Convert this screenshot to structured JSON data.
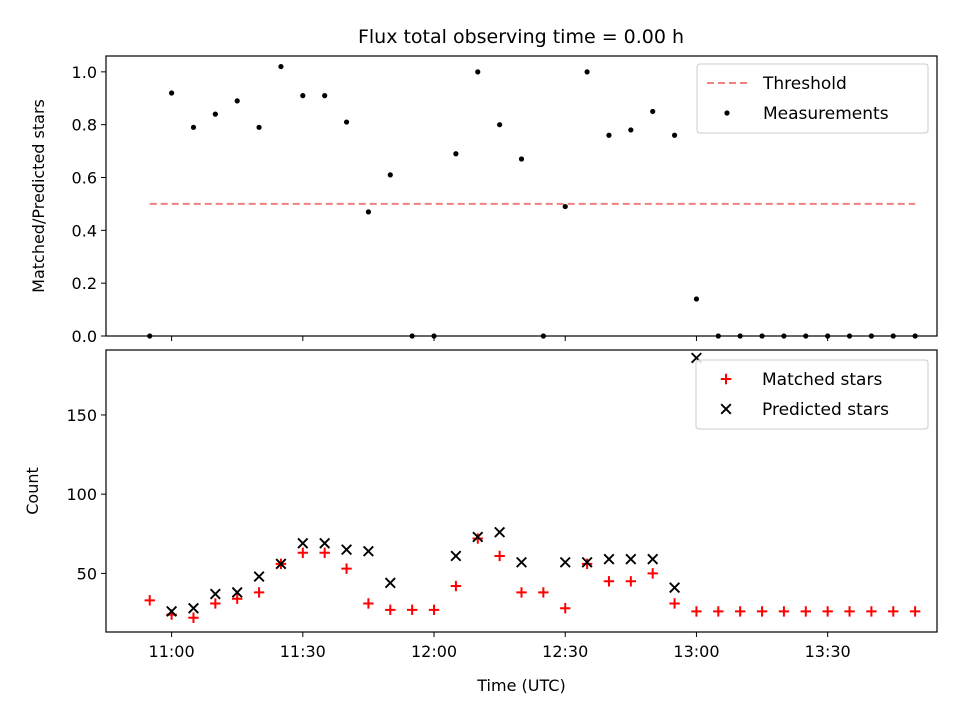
{
  "title": "Flux total observing time = 0.00 h",
  "chart_data": [
    {
      "type": "scatter",
      "title": "Flux total observing time = 0.00 h",
      "xlabel": "",
      "ylabel": "Matched/Predicted stars",
      "x_unit": "minutes since 00:00 UTC",
      "xlim": [
        645,
        835
      ],
      "ylim": [
        0,
        1.06
      ],
      "yticks": [
        0.0,
        0.2,
        0.4,
        0.6,
        0.8,
        1.0
      ],
      "ytick_labels": [
        "0.0",
        "0.2",
        "0.4",
        "0.6",
        "0.8",
        "1.0"
      ],
      "legend": {
        "placement": "top-right",
        "entries": [
          {
            "name": "Threshold",
            "marker": "dashed-line",
            "color": "#f08080"
          },
          {
            "name": "Measurements",
            "marker": "dot",
            "color": "#000000"
          }
        ]
      },
      "threshold": {
        "name": "Threshold",
        "value": 0.5,
        "x": [
          655,
          830
        ],
        "color": "#f08080"
      },
      "series": [
        {
          "name": "Measurements",
          "marker": "dot",
          "color": "#000000",
          "x": [
            655,
            660,
            665,
            670,
            675,
            680,
            685,
            690,
            695,
            700,
            705,
            710,
            715,
            720,
            725,
            730,
            735,
            740,
            745,
            750,
            755,
            760,
            765,
            770,
            775,
            780,
            785,
            790,
            795,
            800,
            805,
            810,
            815,
            820,
            825,
            830
          ],
          "y": [
            0.0,
            0.92,
            0.79,
            0.84,
            0.89,
            0.79,
            1.02,
            0.91,
            0.91,
            0.81,
            0.47,
            0.61,
            0.0,
            0.0,
            0.69,
            1.0,
            0.8,
            0.67,
            0.0,
            0.49,
            1.0,
            0.76,
            0.78,
            0.85,
            0.76,
            0.14,
            0.0,
            0.0,
            0.0,
            0.0,
            0.0,
            0.0,
            0.0,
            0.0,
            0.0,
            0.0
          ]
        }
      ]
    },
    {
      "type": "scatter",
      "title": "",
      "xlabel": "Time (UTC)",
      "ylabel": "Count",
      "x_unit": "minutes since 00:00 UTC",
      "xlim": [
        645,
        835
      ],
      "ylim": [
        13,
        191
      ],
      "xticks": [
        660,
        690,
        720,
        750,
        780,
        810
      ],
      "xtick_labels": [
        "11:00",
        "11:30",
        "12:00",
        "12:30",
        "13:00",
        "13:30"
      ],
      "yticks": [
        50,
        100,
        150
      ],
      "ytick_labels": [
        "50",
        "100",
        "150"
      ],
      "legend": {
        "placement": "top-right",
        "entries": [
          {
            "name": "Matched stars",
            "marker": "plus",
            "color": "#ff0000"
          },
          {
            "name": "Predicted stars",
            "marker": "x",
            "color": "#000000"
          }
        ]
      },
      "series": [
        {
          "name": "Matched stars",
          "marker": "plus",
          "color": "#ff0000",
          "x": [
            655,
            660,
            665,
            670,
            675,
            680,
            685,
            690,
            695,
            700,
            705,
            710,
            715,
            720,
            725,
            730,
            735,
            740,
            745,
            750,
            755,
            760,
            765,
            770,
            775,
            780,
            785,
            790,
            795,
            800,
            805,
            810,
            815,
            820,
            825,
            830
          ],
          "y": [
            33,
            24,
            22,
            31,
            34,
            38,
            56,
            63,
            63,
            53,
            31,
            27,
            27,
            27,
            42,
            72,
            61,
            38,
            38,
            28,
            56,
            45,
            45,
            50,
            31,
            26,
            26,
            26,
            26,
            26,
            26,
            26,
            26,
            26,
            26,
            26
          ]
        },
        {
          "name": "Predicted stars",
          "marker": "x",
          "color": "#000000",
          "x": [
            660,
            665,
            670,
            675,
            680,
            685,
            690,
            695,
            700,
            705,
            710,
            725,
            730,
            735,
            740,
            750,
            755,
            760,
            765,
            770,
            775,
            780
          ],
          "y": [
            26,
            28,
            37,
            38,
            48,
            56,
            69,
            69,
            65,
            64,
            44,
            61,
            73,
            76,
            57,
            57,
            57,
            59,
            59,
            59,
            41,
            186
          ]
        }
      ]
    }
  ]
}
